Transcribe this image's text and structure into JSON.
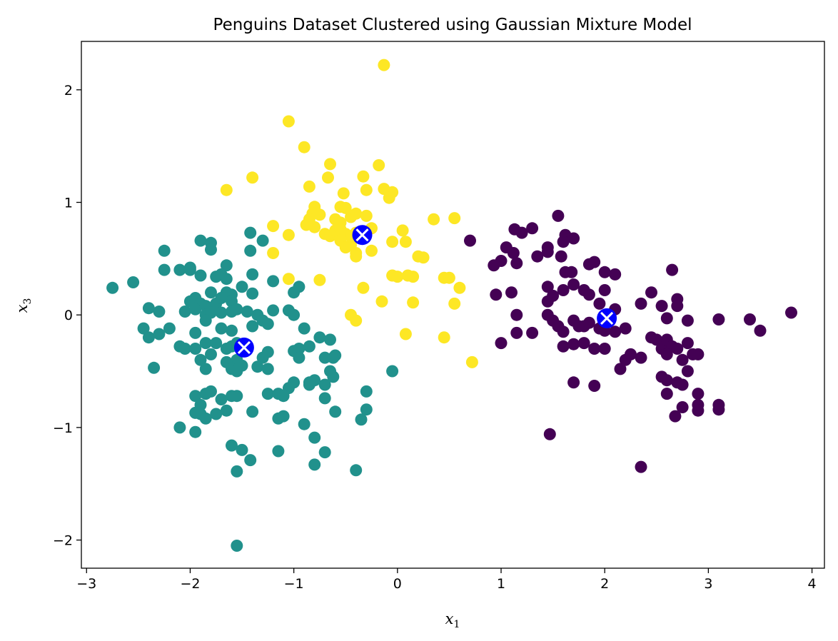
{
  "chart_data": {
    "type": "scatter",
    "title": "Penguins Dataset Clustered using Gaussian Mixture Model",
    "xlabel": {
      "base": "x",
      "sub": "1"
    },
    "ylabel": {
      "base": "x",
      "sub": "3"
    },
    "xlim": [
      -3.05,
      4.12
    ],
    "ylim": [
      -2.25,
      2.43
    ],
    "xticks": [
      -3,
      -2,
      -1,
      0,
      1,
      2,
      3,
      4
    ],
    "yticks": [
      -2,
      -1,
      0,
      1,
      2
    ],
    "grid": false,
    "legend": "none",
    "colors": {
      "cluster_0": "#440154",
      "cluster_1": "#21918c",
      "cluster_2": "#fde725",
      "center_fill": "#0000ff",
      "center_mark": "#ffffff"
    },
    "series": [
      {
        "cluster": 0,
        "color": "#440154",
        "points": [
          [
            1.55,
            0.88
          ],
          [
            1.13,
            0.76
          ],
          [
            1.3,
            0.77
          ],
          [
            1.2,
            0.73
          ],
          [
            1.62,
            0.71
          ],
          [
            1.7,
            0.68
          ],
          [
            1.6,
            0.65
          ],
          [
            1.05,
            0.6
          ],
          [
            1.12,
            0.55
          ],
          [
            1.45,
            0.6
          ],
          [
            0.7,
            0.66
          ],
          [
            0.93,
            0.44
          ],
          [
            1.0,
            0.48
          ],
          [
            1.15,
            0.46
          ],
          [
            1.35,
            0.52
          ],
          [
            1.45,
            0.56
          ],
          [
            1.58,
            0.52
          ],
          [
            1.62,
            0.38
          ],
          [
            1.68,
            0.38
          ],
          [
            1.85,
            0.45
          ],
          [
            1.9,
            0.47
          ],
          [
            2.0,
            0.38
          ],
          [
            2.1,
            0.36
          ],
          [
            1.45,
            0.25
          ],
          [
            1.5,
            0.17
          ],
          [
            1.6,
            0.22
          ],
          [
            1.7,
            0.27
          ],
          [
            1.8,
            0.22
          ],
          [
            1.85,
            0.18
          ],
          [
            1.95,
            0.1
          ],
          [
            2.0,
            0.22
          ],
          [
            2.1,
            0.05
          ],
          [
            2.35,
            0.1
          ],
          [
            2.45,
            0.2
          ],
          [
            2.55,
            0.08
          ],
          [
            2.65,
            0.4
          ],
          [
            2.7,
            0.14
          ],
          [
            2.7,
            0.08
          ],
          [
            2.8,
            -0.05
          ],
          [
            2.6,
            -0.03
          ],
          [
            0.95,
            0.18
          ],
          [
            1.1,
            0.2
          ],
          [
            1.45,
            0.12
          ],
          [
            1.15,
            0.0
          ],
          [
            1.45,
            0.0
          ],
          [
            1.5,
            -0.05
          ],
          [
            1.55,
            -0.1
          ],
          [
            1.6,
            -0.15
          ],
          [
            1.7,
            -0.05
          ],
          [
            1.75,
            -0.1
          ],
          [
            1.8,
            -0.1
          ],
          [
            1.85,
            -0.07
          ],
          [
            1.95,
            -0.12
          ],
          [
            2.0,
            -0.14
          ],
          [
            2.05,
            -0.05
          ],
          [
            2.1,
            -0.15
          ],
          [
            2.2,
            -0.12
          ],
          [
            1.0,
            -0.25
          ],
          [
            1.15,
            -0.16
          ],
          [
            1.3,
            -0.16
          ],
          [
            1.6,
            -0.28
          ],
          [
            1.7,
            -0.26
          ],
          [
            1.8,
            -0.25
          ],
          [
            1.9,
            -0.3
          ],
          [
            2.0,
            -0.3
          ],
          [
            2.15,
            -0.48
          ],
          [
            2.2,
            -0.4
          ],
          [
            2.25,
            -0.35
          ],
          [
            2.35,
            -0.38
          ],
          [
            2.45,
            -0.2
          ],
          [
            2.5,
            -0.22
          ],
          [
            2.55,
            -0.3
          ],
          [
            2.55,
            -0.25
          ],
          [
            2.6,
            -0.22
          ],
          [
            2.65,
            -0.28
          ],
          [
            2.7,
            -0.3
          ],
          [
            2.6,
            -0.35
          ],
          [
            2.8,
            -0.25
          ],
          [
            2.85,
            -0.35
          ],
          [
            2.9,
            -0.35
          ],
          [
            2.75,
            -0.4
          ],
          [
            2.8,
            -0.5
          ],
          [
            2.55,
            -0.55
          ],
          [
            2.6,
            -0.58
          ],
          [
            2.7,
            -0.6
          ],
          [
            2.75,
            -0.62
          ],
          [
            2.9,
            -0.7
          ],
          [
            2.6,
            -0.7
          ],
          [
            2.75,
            -0.82
          ],
          [
            2.9,
            -0.8
          ],
          [
            2.9,
            -0.85
          ],
          [
            3.1,
            -0.8
          ],
          [
            3.1,
            -0.84
          ],
          [
            2.68,
            -0.9
          ],
          [
            1.7,
            -0.6
          ],
          [
            1.9,
            -0.63
          ],
          [
            3.1,
            -0.04
          ],
          [
            3.4,
            -0.04
          ],
          [
            3.5,
            -0.14
          ],
          [
            3.8,
            0.02
          ],
          [
            1.47,
            -1.06
          ],
          [
            2.35,
            -1.35
          ]
        ]
      },
      {
        "cluster": 1,
        "color": "#21918c",
        "points": [
          [
            -1.9,
            0.66
          ],
          [
            -1.8,
            0.64
          ],
          [
            -1.8,
            0.58
          ],
          [
            -1.42,
            0.73
          ],
          [
            -1.3,
            0.66
          ],
          [
            -1.42,
            0.57
          ],
          [
            -2.25,
            0.57
          ],
          [
            -2.25,
            0.4
          ],
          [
            -2.0,
            0.42
          ],
          [
            -1.65,
            0.44
          ],
          [
            -1.9,
            0.35
          ],
          [
            -1.75,
            0.34
          ],
          [
            -1.7,
            0.36
          ],
          [
            -1.65,
            0.32
          ],
          [
            -1.4,
            0.36
          ],
          [
            -1.2,
            0.3
          ],
          [
            -2.0,
            0.4
          ],
          [
            -2.1,
            0.4
          ],
          [
            -2.75,
            0.24
          ],
          [
            -2.55,
            0.29
          ],
          [
            -1.8,
            0.2
          ],
          [
            -1.65,
            0.2
          ],
          [
            -1.6,
            0.18
          ],
          [
            -1.5,
            0.25
          ],
          [
            -1.4,
            0.19
          ],
          [
            -1.0,
            0.2
          ],
          [
            -0.95,
            0.25
          ],
          [
            -2.0,
            0.12
          ],
          [
            -1.95,
            0.15
          ],
          [
            -1.9,
            0.1
          ],
          [
            -1.85,
            0.08
          ],
          [
            -1.75,
            0.1
          ],
          [
            -1.7,
            0.15
          ],
          [
            -1.6,
            0.12
          ],
          [
            -2.4,
            0.06
          ],
          [
            -2.3,
            0.03
          ],
          [
            -2.05,
            0.03
          ],
          [
            -1.95,
            0.05
          ],
          [
            -1.85,
            0.0
          ],
          [
            -1.8,
            0.02
          ],
          [
            -1.7,
            0.02
          ],
          [
            -1.6,
            0.03
          ],
          [
            -1.55,
            0.05
          ],
          [
            -1.45,
            0.03
          ],
          [
            -1.35,
            0.0
          ],
          [
            -1.2,
            0.04
          ],
          [
            -1.05,
            0.04
          ],
          [
            -1.0,
            0.0
          ],
          [
            -2.45,
            -0.12
          ],
          [
            -2.4,
            -0.2
          ],
          [
            -2.3,
            -0.17
          ],
          [
            -2.2,
            -0.12
          ],
          [
            -1.95,
            -0.16
          ],
          [
            -1.85,
            -0.05
          ],
          [
            -1.7,
            -0.12
          ],
          [
            -1.6,
            -0.14
          ],
          [
            -1.55,
            -0.25
          ],
          [
            -1.4,
            -0.1
          ],
          [
            -1.3,
            -0.05
          ],
          [
            -1.25,
            -0.08
          ],
          [
            -0.9,
            -0.12
          ],
          [
            -0.75,
            -0.2
          ],
          [
            -0.65,
            -0.22
          ],
          [
            -2.1,
            -0.28
          ],
          [
            -2.05,
            -0.3
          ],
          [
            -1.95,
            -0.3
          ],
          [
            -1.85,
            -0.25
          ],
          [
            -1.8,
            -0.35
          ],
          [
            -1.75,
            -0.25
          ],
          [
            -1.65,
            -0.3
          ],
          [
            -1.6,
            -0.28
          ],
          [
            -1.55,
            -0.4
          ],
          [
            -1.5,
            -0.28
          ],
          [
            -1.3,
            -0.38
          ],
          [
            -1.25,
            -0.33
          ],
          [
            -1.0,
            -0.32
          ],
          [
            -0.95,
            -0.3
          ],
          [
            -0.85,
            -0.28
          ],
          [
            -0.7,
            -0.38
          ],
          [
            -0.62,
            -0.38
          ],
          [
            -0.6,
            -0.36
          ],
          [
            -2.35,
            -0.47
          ],
          [
            -1.9,
            -0.4
          ],
          [
            -1.85,
            -0.48
          ],
          [
            -1.65,
            -0.42
          ],
          [
            -1.6,
            -0.48
          ],
          [
            -1.55,
            -0.5
          ],
          [
            -1.5,
            -0.45
          ],
          [
            -1.35,
            -0.46
          ],
          [
            -1.25,
            -0.48
          ],
          [
            -0.95,
            -0.38
          ],
          [
            -0.65,
            -0.5
          ],
          [
            -0.62,
            -0.55
          ],
          [
            -0.8,
            -0.58
          ],
          [
            -0.85,
            -0.62
          ],
          [
            -1.0,
            -0.6
          ],
          [
            -1.05,
            -0.65
          ],
          [
            -0.7,
            -0.62
          ],
          [
            -0.05,
            -0.5
          ],
          [
            -0.3,
            -0.68
          ],
          [
            -1.95,
            -0.72
          ],
          [
            -1.9,
            -0.8
          ],
          [
            -1.85,
            -0.7
          ],
          [
            -1.8,
            -0.68
          ],
          [
            -1.7,
            -0.75
          ],
          [
            -1.6,
            -0.72
          ],
          [
            -1.55,
            -0.72
          ],
          [
            -1.25,
            -0.7
          ],
          [
            -1.15,
            -0.7
          ],
          [
            -1.1,
            -0.72
          ],
          [
            -0.85,
            -0.6
          ],
          [
            -0.7,
            -0.74
          ],
          [
            -1.95,
            -0.87
          ],
          [
            -1.9,
            -0.88
          ],
          [
            -1.85,
            -0.92
          ],
          [
            -1.75,
            -0.88
          ],
          [
            -1.65,
            -0.85
          ],
          [
            -1.4,
            -0.86
          ],
          [
            -1.15,
            -0.92
          ],
          [
            -1.1,
            -0.9
          ],
          [
            -0.9,
            -0.97
          ],
          [
            -0.6,
            -0.86
          ],
          [
            -0.3,
            -0.84
          ],
          [
            -0.35,
            -0.93
          ],
          [
            -2.1,
            -1.0
          ],
          [
            -1.95,
            -1.04
          ],
          [
            -0.8,
            -1.09
          ],
          [
            -1.6,
            -1.16
          ],
          [
            -1.5,
            -1.2
          ],
          [
            -1.15,
            -1.21
          ],
          [
            -0.7,
            -1.22
          ],
          [
            -1.42,
            -1.29
          ],
          [
            -0.8,
            -1.33
          ],
          [
            -1.55,
            -1.39
          ],
          [
            -0.4,
            -1.38
          ],
          [
            -1.55,
            -2.05
          ]
        ]
      },
      {
        "cluster": 2,
        "color": "#fde725",
        "points": [
          [
            -0.13,
            2.22
          ],
          [
            -1.05,
            1.72
          ],
          [
            -0.9,
            1.49
          ],
          [
            -0.65,
            1.34
          ],
          [
            -0.18,
            1.33
          ],
          [
            -1.4,
            1.22
          ],
          [
            -0.67,
            1.22
          ],
          [
            -0.33,
            1.23
          ],
          [
            -1.65,
            1.11
          ],
          [
            -0.85,
            1.14
          ],
          [
            -0.52,
            1.08
          ],
          [
            -0.3,
            1.11
          ],
          [
            -0.13,
            1.12
          ],
          [
            -0.05,
            1.09
          ],
          [
            -0.08,
            1.04
          ],
          [
            -0.8,
            0.96
          ],
          [
            -0.55,
            0.96
          ],
          [
            -0.5,
            0.95
          ],
          [
            -0.82,
            0.9
          ],
          [
            -0.75,
            0.89
          ],
          [
            -0.6,
            0.85
          ],
          [
            -0.55,
            0.82
          ],
          [
            -0.45,
            0.87
          ],
          [
            -0.4,
            0.9
          ],
          [
            -0.3,
            0.88
          ],
          [
            -0.85,
            0.85
          ],
          [
            -0.88,
            0.8
          ],
          [
            -0.8,
            0.78
          ],
          [
            -0.7,
            0.72
          ],
          [
            -0.65,
            0.7
          ],
          [
            -0.6,
            0.75
          ],
          [
            -0.55,
            0.76
          ],
          [
            -0.5,
            0.72
          ],
          [
            -0.45,
            0.7
          ],
          [
            -0.4,
            0.73
          ],
          [
            -0.35,
            0.72
          ],
          [
            -0.25,
            0.77
          ],
          [
            -1.2,
            0.79
          ],
          [
            -1.05,
            0.71
          ],
          [
            0.35,
            0.85
          ],
          [
            0.55,
            0.86
          ],
          [
            -0.55,
            0.66
          ],
          [
            -0.45,
            0.62
          ],
          [
            -0.4,
            0.55
          ],
          [
            -0.5,
            0.6
          ],
          [
            0.05,
            0.75
          ],
          [
            0.08,
            0.65
          ],
          [
            -0.05,
            0.65
          ],
          [
            -1.2,
            0.55
          ],
          [
            -0.25,
            0.57
          ],
          [
            -0.4,
            0.52
          ],
          [
            0.2,
            0.52
          ],
          [
            0.25,
            0.51
          ],
          [
            -0.05,
            0.35
          ],
          [
            0.0,
            0.34
          ],
          [
            0.1,
            0.35
          ],
          [
            0.15,
            0.34
          ],
          [
            0.45,
            0.33
          ],
          [
            0.5,
            0.33
          ],
          [
            0.6,
            0.24
          ],
          [
            -0.75,
            0.31
          ],
          [
            -1.05,
            0.32
          ],
          [
            -0.33,
            0.24
          ],
          [
            -0.15,
            0.12
          ],
          [
            0.15,
            0.11
          ],
          [
            0.55,
            0.1
          ],
          [
            -0.45,
            0.0
          ],
          [
            -0.4,
            -0.05
          ],
          [
            0.08,
            -0.17
          ],
          [
            0.45,
            -0.2
          ],
          [
            0.72,
            -0.42
          ]
        ]
      }
    ],
    "centers": [
      [
        2.02,
        -0.03
      ],
      [
        -1.48,
        -0.29
      ],
      [
        -0.34,
        0.71
      ]
    ]
  }
}
